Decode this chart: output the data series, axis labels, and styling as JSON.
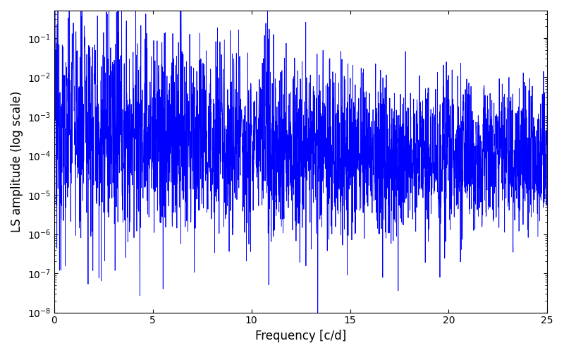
{
  "title": "",
  "xlabel": "Frequency [c/d]",
  "ylabel": "LS amplitude (log scale)",
  "xlim": [
    0,
    25
  ],
  "ylim": [
    1e-08,
    0.5
  ],
  "line_color": "#0000ff",
  "line_width": 0.6,
  "freq_min": 0.0,
  "freq_max": 25.0,
  "n_points": 3000,
  "seed": 12345,
  "figsize": [
    8.0,
    5.0
  ],
  "dpi": 100
}
